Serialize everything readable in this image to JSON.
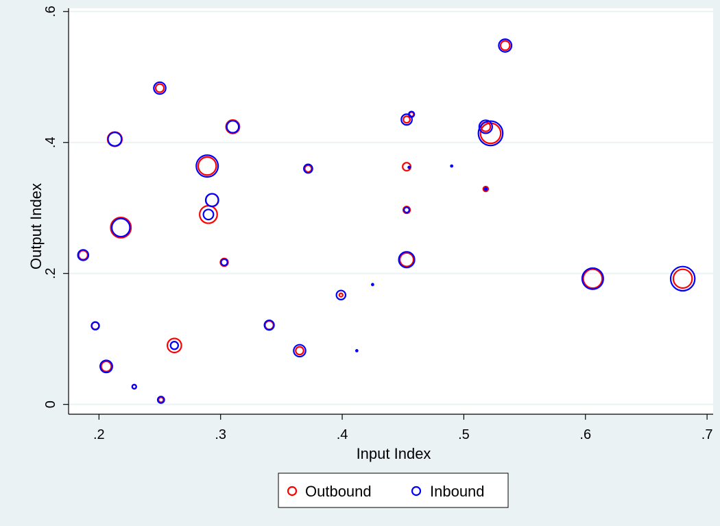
{
  "chart_data": {
    "type": "scatter",
    "subtype": "bubble",
    "title": "",
    "xlabel": "Input Index",
    "ylabel": "Output Index",
    "xlim": [
      0.175,
      0.705
    ],
    "ylim": [
      -0.015,
      0.605
    ],
    "x_ticks": [
      0.2,
      0.3,
      0.4,
      0.5,
      0.6,
      0.7
    ],
    "x_tick_labels": [
      ".2",
      ".3",
      ".4",
      ".5",
      ".6",
      ".7"
    ],
    "y_ticks": [
      0,
      0.2,
      0.4,
      0.6
    ],
    "y_tick_labels": [
      "0",
      ".2",
      ".4",
      ".6"
    ],
    "grid": "horizontal",
    "legend_position": "bottom",
    "background_color": "#eaf2f3",
    "plot_background": "#ffffff",
    "series": [
      {
        "name": "Outbound",
        "color": "#ff0000",
        "points": [
          {
            "x": 0.534,
            "y": 0.548,
            "size": 2.8
          },
          {
            "x": 0.25,
            "y": 0.483,
            "size": 2.2
          },
          {
            "x": 0.213,
            "y": 0.405,
            "size": 6.7
          },
          {
            "x": 0.31,
            "y": 0.424,
            "size": 5.9
          },
          {
            "x": 0.289,
            "y": 0.364,
            "size": 10.5
          },
          {
            "x": 0.372,
            "y": 0.36,
            "size": 1.5
          },
          {
            "x": 0.218,
            "y": 0.27,
            "size": 13.4
          },
          {
            "x": 0.29,
            "y": 0.29,
            "size": 10.0
          },
          {
            "x": 0.293,
            "y": 0.312,
            "size": 5.0
          },
          {
            "x": 0.187,
            "y": 0.228,
            "size": 2.6
          },
          {
            "x": 0.303,
            "y": 0.217,
            "size": 1.9
          },
          {
            "x": 0.399,
            "y": 0.167,
            "size": 0.4
          },
          {
            "x": 0.197,
            "y": 0.12,
            "size": 1.7
          },
          {
            "x": 0.34,
            "y": 0.121,
            "size": 2.3
          },
          {
            "x": 0.262,
            "y": 0.09,
            "size": 6.4
          },
          {
            "x": 0.206,
            "y": 0.058,
            "size": 3.3
          },
          {
            "x": 0.365,
            "y": 0.082,
            "size": 2.0
          },
          {
            "x": 0.229,
            "y": 0.027,
            "size": 0.6
          },
          {
            "x": 0.251,
            "y": 0.007,
            "size": 0.8
          },
          {
            "x": 0.453,
            "y": 0.435,
            "size": 1.4
          },
          {
            "x": 0.457,
            "y": 0.443,
            "size": 0.6
          },
          {
            "x": 0.453,
            "y": 0.363,
            "size": 2.1
          },
          {
            "x": 0.453,
            "y": 0.297,
            "size": 1.5
          },
          {
            "x": 0.453,
            "y": 0.221,
            "size": 6.0
          },
          {
            "x": 0.518,
            "y": 0.424,
            "size": 2.8
          },
          {
            "x": 0.522,
            "y": 0.414,
            "size": 13.3
          },
          {
            "x": 0.518,
            "y": 0.329,
            "size": 0.8
          },
          {
            "x": 0.606,
            "y": 0.192,
            "size": 11.6
          },
          {
            "x": 0.68,
            "y": 0.192,
            "size": 11.4
          }
        ]
      },
      {
        "name": "Inbound",
        "color": "#0000ff",
        "points": [
          {
            "x": 0.534,
            "y": 0.548,
            "size": 5.3
          },
          {
            "x": 0.25,
            "y": 0.483,
            "size": 4.6
          },
          {
            "x": 0.213,
            "y": 0.405,
            "size": 5.9
          },
          {
            "x": 0.31,
            "y": 0.424,
            "size": 4.6
          },
          {
            "x": 0.289,
            "y": 0.364,
            "size": 15.4
          },
          {
            "x": 0.372,
            "y": 0.36,
            "size": 2.4
          },
          {
            "x": 0.218,
            "y": 0.27,
            "size": 10.6
          },
          {
            "x": 0.29,
            "y": 0.29,
            "size": 3.3
          },
          {
            "x": 0.293,
            "y": 0.312,
            "size": 5.3
          },
          {
            "x": 0.187,
            "y": 0.228,
            "size": 3.6
          },
          {
            "x": 0.303,
            "y": 0.217,
            "size": 1.3
          },
          {
            "x": 0.399,
            "y": 0.167,
            "size": 2.7
          },
          {
            "x": 0.197,
            "y": 0.12,
            "size": 1.9
          },
          {
            "x": 0.34,
            "y": 0.121,
            "size": 3.0
          },
          {
            "x": 0.262,
            "y": 0.09,
            "size": 1.9
          },
          {
            "x": 0.206,
            "y": 0.058,
            "size": 4.8
          },
          {
            "x": 0.365,
            "y": 0.082,
            "size": 4.6
          },
          {
            "x": 0.229,
            "y": 0.027,
            "size": 0.5
          },
          {
            "x": 0.251,
            "y": 0.007,
            "size": 1.4
          },
          {
            "x": 0.453,
            "y": 0.435,
            "size": 3.7
          },
          {
            "x": 0.457,
            "y": 0.443,
            "size": 1.0
          },
          {
            "x": 0.453,
            "y": 0.297,
            "size": 0.9
          },
          {
            "x": 0.453,
            "y": 0.221,
            "size": 8.0
          },
          {
            "x": 0.518,
            "y": 0.424,
            "size": 5.5
          },
          {
            "x": 0.522,
            "y": 0.414,
            "size": 19.3
          },
          {
            "x": 0.518,
            "y": 0.329,
            "size": 0.2
          },
          {
            "x": 0.606,
            "y": 0.192,
            "size": 14.5
          },
          {
            "x": 0.68,
            "y": 0.192,
            "size": 19.0
          },
          {
            "x": 0.455,
            "y": 0.362,
            "size": 0.1
          },
          {
            "x": 0.425,
            "y": 0.183,
            "size": 0.1
          },
          {
            "x": 0.412,
            "y": 0.082,
            "size": 0.1
          },
          {
            "x": 0.49,
            "y": 0.364,
            "size": 0.1
          }
        ]
      }
    ]
  }
}
